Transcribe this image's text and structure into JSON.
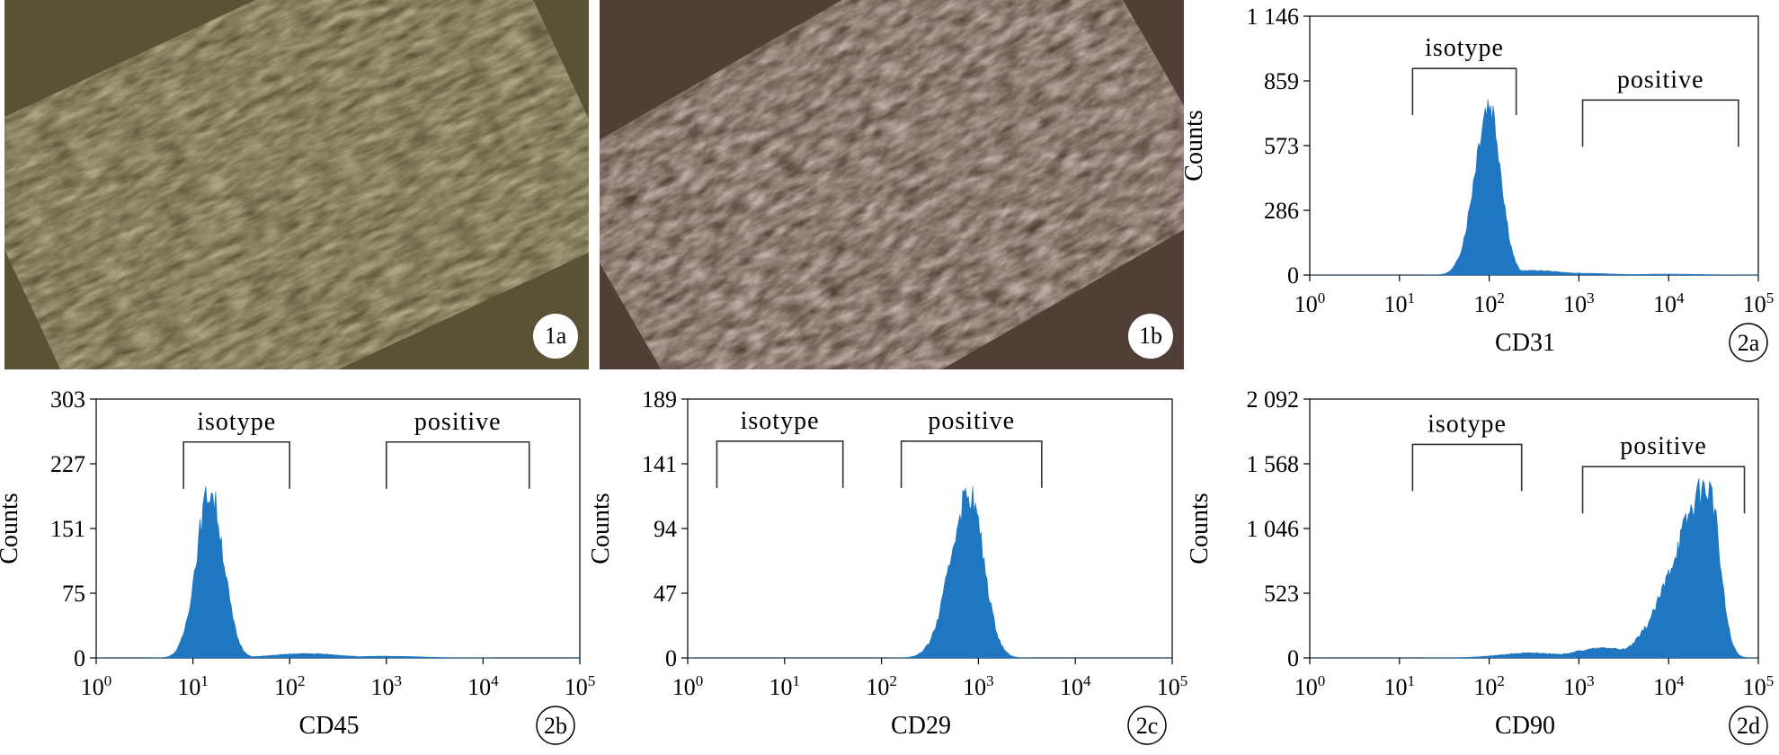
{
  "photos": [
    {
      "id": "1a",
      "label": "1a",
      "tone": "#5a5234"
    },
    {
      "id": "1b",
      "label": "1b",
      "tone": "#4f3f36"
    }
  ],
  "colors": {
    "histogram": "#1f77c2",
    "axis": "#000000"
  },
  "chart_data": [
    {
      "id": "2a",
      "type": "area",
      "panel_label": "2a",
      "xlabel": "CD31",
      "ylabel": "Counts",
      "x_scale": "log",
      "xlim": [
        1,
        100000
      ],
      "x_ticks": [
        {
          "base": "10",
          "exp": "0"
        },
        {
          "base": "10",
          "exp": "1"
        },
        {
          "base": "10",
          "exp": "2"
        },
        {
          "base": "10",
          "exp": "3"
        },
        {
          "base": "10",
          "exp": "4"
        },
        {
          "base": "10",
          "exp": "5"
        }
      ],
      "y_ticks": [
        "0",
        "286",
        "573",
        "859",
        "1 146"
      ],
      "ylim": [
        0,
        1146
      ],
      "series": {
        "peak_x": 100,
        "peak_y": 760,
        "left_width_decades": 0.16,
        "right_width_decades": 0.13,
        "tail": [
          {
            "x": 300,
            "y": 20
          },
          {
            "x": 1000,
            "y": 8
          },
          {
            "x": 10000,
            "y": 4
          }
        ]
      },
      "gates": [
        {
          "name": "isotype",
          "x1": 14,
          "x2": 200,
          "label_y": 1010
        },
        {
          "name": "positive",
          "x1": 1100,
          "x2": 60000,
          "label_y": 870
        }
      ]
    },
    {
      "id": "2b",
      "type": "area",
      "panel_label": "2b",
      "xlabel": "CD45",
      "ylabel": "Counts",
      "x_scale": "log",
      "xlim": [
        1,
        100000
      ],
      "x_ticks": [
        {
          "base": "10",
          "exp": "0"
        },
        {
          "base": "10",
          "exp": "1"
        },
        {
          "base": "10",
          "exp": "2"
        },
        {
          "base": "10",
          "exp": "3"
        },
        {
          "base": "10",
          "exp": "4"
        },
        {
          "base": "10",
          "exp": "5"
        }
      ],
      "y_ticks": [
        "0",
        "75",
        "151",
        "227",
        "303"
      ],
      "ylim": [
        0,
        303
      ],
      "series": {
        "peak_x": 15,
        "peak_y": 195,
        "left_width_decades": 0.14,
        "right_width_decades": 0.14,
        "tail": [
          {
            "x": 150,
            "y": 5
          },
          {
            "x": 1000,
            "y": 2
          }
        ]
      },
      "gates": [
        {
          "name": "isotype",
          "x1": 8,
          "x2": 100,
          "label_y": 278
        },
        {
          "name": "positive",
          "x1": 1000,
          "x2": 30000,
          "label_y": 278
        }
      ]
    },
    {
      "id": "2c",
      "type": "area",
      "panel_label": "2c",
      "xlabel": "CD29",
      "ylabel": "Counts",
      "x_scale": "log",
      "xlim": [
        1,
        100000
      ],
      "x_ticks": [
        {
          "base": "10",
          "exp": "0"
        },
        {
          "base": "10",
          "exp": "1"
        },
        {
          "base": "10",
          "exp": "2"
        },
        {
          "base": "10",
          "exp": "3"
        },
        {
          "base": "10",
          "exp": "4"
        },
        {
          "base": "10",
          "exp": "5"
        }
      ],
      "y_ticks": [
        "0",
        "47",
        "94",
        "141",
        "189"
      ],
      "ylim": [
        0,
        189
      ],
      "series": {
        "peak_x": 800,
        "peak_y": 120,
        "left_width_decades": 0.19,
        "right_width_decades": 0.15,
        "tail": []
      },
      "gates": [
        {
          "name": "isotype",
          "x1": 2,
          "x2": 40,
          "label_y": 174
        },
        {
          "name": "positive",
          "x1": 160,
          "x2": 4500,
          "label_y": 174
        }
      ]
    },
    {
      "id": "2d",
      "type": "area",
      "panel_label": "2d",
      "xlabel": "CD90",
      "ylabel": "Counts",
      "x_scale": "log",
      "xlim": [
        1,
        100000
      ],
      "x_ticks": [
        {
          "base": "10",
          "exp": "0"
        },
        {
          "base": "10",
          "exp": "1"
        },
        {
          "base": "10",
          "exp": "2"
        },
        {
          "base": "10",
          "exp": "3"
        },
        {
          "base": "10",
          "exp": "4"
        },
        {
          "base": "10",
          "exp": "5"
        }
      ],
      "y_ticks": [
        "0",
        "523",
        "1 046",
        "1 568",
        "2 092"
      ],
      "ylim": [
        0,
        2092
      ],
      "series": {
        "peak_x": 28000,
        "peak_y": 1380,
        "left_width_decades": 0.38,
        "right_width_decades": 0.12,
        "tail": [
          {
            "x": 300,
            "y": 40
          },
          {
            "x": 2000,
            "y": 80
          }
        ]
      },
      "gates": [
        {
          "name": "isotype",
          "x1": 14,
          "x2": 230,
          "label_y": 1900
        },
        {
          "name": "positive",
          "x1": 1100,
          "x2": 70000,
          "label_y": 1720
        }
      ]
    }
  ]
}
